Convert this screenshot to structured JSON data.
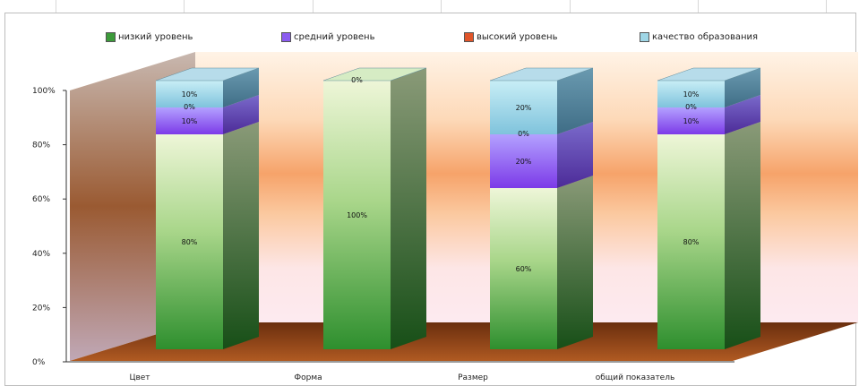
{
  "chart_data": {
    "type": "bar",
    "stacked": true,
    "style": "3d-stacked-column",
    "categories": [
      "Цвет",
      "Форма",
      "Размер",
      "общий показатель"
    ],
    "series": [
      {
        "name": "низкий уровень",
        "color": "#3c9b3a",
        "values": [
          80,
          100,
          60,
          80
        ]
      },
      {
        "name": "средний уровень",
        "color": "#8b5cf0",
        "values": [
          10,
          0,
          20,
          10
        ]
      },
      {
        "name": "высокий уровень",
        "color": "#e0552a",
        "values": [
          0,
          0,
          0,
          0
        ]
      },
      {
        "name": "качество образования",
        "color": "#9fd6e6",
        "values": [
          10,
          0,
          20,
          10
        ]
      }
    ],
    "data_labels": [
      [
        "80%",
        "100%",
        "60%",
        "80%"
      ],
      [
        "10%",
        "",
        "20%",
        "10%"
      ],
      [
        "0%",
        "0%",
        "0%",
        "0%"
      ],
      [
        "10%",
        "",
        "20%",
        "10%"
      ]
    ],
    "y_ticks": [
      "0%",
      "20%",
      "40%",
      "60%",
      "80%",
      "100%"
    ],
    "ylim": [
      0,
      100
    ],
    "legend_position": "top",
    "grid": false
  }
}
